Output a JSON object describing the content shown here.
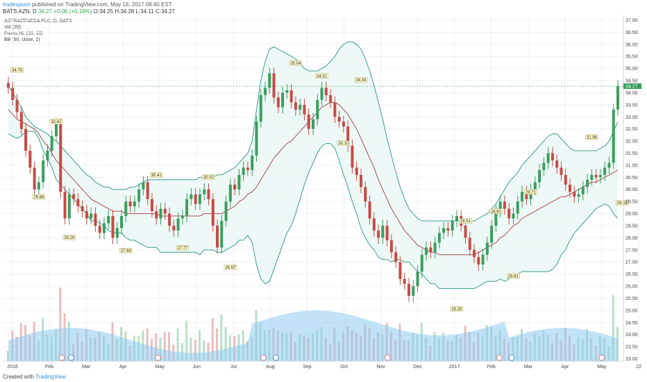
{
  "header": {
    "user": "tradespoon",
    "published": "published on TradingView.com, May 16, 2017 09:40 EST"
  },
  "ticker": {
    "symbol": "BATS:AZN, D",
    "last": "34.27",
    "change": "+0.06 (+0.18%)",
    "open": "O:34.25",
    "high": "H:34.28",
    "low": "L:34.11",
    "close": "C:34.27"
  },
  "legend": {
    "title": "ASTRAZENECA PLC, D, BATS",
    "vol": "Vol (20)",
    "pivots": "Pivots HL (10, 10)",
    "bb": "BB (50, close, 2)"
  },
  "footer": {
    "created": "Created with",
    "brand": "TradingView"
  },
  "colors": {
    "up": "#3a9e5e",
    "down": "#c94a44",
    "band": "#3c9b8e",
    "band_fill": "#e9f6f5",
    "basis": "#b04a4a",
    "volume_avg": "#8ecbf0",
    "price_label": "#3a9e5e"
  },
  "chart_data": {
    "type": "candlestick",
    "x_ticks": [
      "2016",
      "Feb",
      "Mar",
      "Apr",
      "May",
      "Jun",
      "Jul",
      "Aug",
      "Sep",
      "Oct",
      "Nov",
      "Dec",
      "2017",
      "Feb",
      "Mar",
      "Apr",
      "May",
      "22"
    ],
    "y_ticks": [
      "37.00",
      "36.50",
      "36.00",
      "35.50",
      "35.00",
      "34.50",
      "34.00",
      "33.50",
      "33.00",
      "32.50",
      "32.00",
      "31.50",
      "31.00",
      "30.50",
      "30.00",
      "29.50",
      "29.00",
      "28.50",
      "28.00",
      "27.50",
      "27.00",
      "26.50",
      "26.00",
      "25.50",
      "25.00",
      "24.50",
      "24.00",
      "23.50",
      "23.00"
    ],
    "ylim": [
      22.9,
      37.2
    ],
    "last_price_label": "34.27",
    "closes": [
      34.2,
      33.7,
      33.2,
      32.5,
      31.6,
      30.9,
      30.0,
      30.3,
      31.2,
      31.6,
      32.2,
      32.7,
      29.9,
      28.8,
      29.8,
      29.6,
      29.3,
      29.1,
      28.8,
      29.0,
      28.5,
      28.2,
      28.6,
      28.9,
      28.0,
      28.4,
      28.9,
      29.5,
      29.3,
      29.5,
      30.0,
      30.3,
      29.6,
      29.1,
      28.8,
      29.2,
      29.0,
      28.5,
      28.3,
      28.8,
      28.9,
      29.6,
      29.8,
      29.4,
      29.8,
      30.0,
      29.6,
      28.5,
      27.6,
      28.7,
      29.5,
      30.2,
      30.0,
      30.6,
      30.9,
      30.8,
      31.4,
      32.8,
      33.9,
      34.2,
      34.8,
      33.8,
      33.4,
      34.0,
      34.1,
      33.6,
      33.3,
      33.5,
      33.1,
      32.5,
      32.9,
      33.7,
      34.2,
      33.9,
      33.6,
      33.0,
      32.8,
      32.6,
      31.8,
      30.9,
      30.6,
      30.1,
      29.5,
      28.8,
      28.3,
      28.0,
      28.5,
      27.9,
      27.4,
      27.0,
      26.3,
      26.1,
      25.6,
      26.0,
      26.6,
      27.3,
      27.6,
      27.4,
      27.8,
      28.2,
      28.4,
      28.3,
      28.7,
      28.9,
      28.5,
      28.0,
      27.5,
      27.2,
      26.9,
      27.3,
      27.8,
      28.5,
      29.1,
      29.5,
      29.2,
      28.8,
      29.0,
      29.5,
      29.9,
      29.6,
      30.0,
      30.3,
      30.8,
      31.1,
      31.5,
      31.2,
      30.9,
      30.6,
      30.2,
      29.9,
      29.7,
      29.8,
      30.1,
      30.4,
      30.6,
      30.5,
      30.6,
      30.9,
      31.1,
      33.3,
      34.27
    ],
    "upper_band": [
      34.3,
      34.0,
      33.7,
      33.4,
      33.0,
      32.8,
      32.6,
      32.5,
      32.4,
      32.3,
      32.1,
      32.0,
      31.8,
      31.6,
      31.4,
      31.2,
      31.0,
      30.8,
      30.6,
      30.5,
      30.3,
      30.2,
      30.1,
      30.1,
      30.0,
      30.0,
      30.0,
      30.0,
      30.1,
      30.1,
      30.2,
      30.3,
      30.4,
      30.4,
      30.4,
      30.4,
      30.4,
      30.4,
      30.4,
      30.4,
      30.4,
      30.4,
      30.4,
      30.4,
      30.5,
      30.5,
      30.5,
      30.5,
      30.6,
      30.6,
      30.7,
      30.8,
      30.9,
      31.1,
      31.3,
      31.5,
      32.0,
      33.3,
      34.5,
      35.3,
      35.8,
      35.9,
      35.8,
      35.7,
      35.6,
      35.5,
      35.4,
      35.2,
      35.0,
      34.9,
      34.9,
      34.9,
      35.0,
      35.1,
      35.3,
      35.5,
      35.8,
      36.0,
      36.1,
      36.1,
      36.0,
      35.8,
      35.4,
      34.9,
      34.3,
      33.6,
      32.9,
      32.1,
      31.4,
      30.7,
      30.1,
      29.6,
      29.2,
      29.0,
      28.8,
      28.7,
      28.7,
      28.7,
      28.7,
      28.7,
      28.7,
      28.7,
      28.7,
      28.7,
      28.7,
      28.7,
      28.7,
      28.7,
      28.8,
      28.9,
      29.0,
      29.2,
      29.4,
      29.7,
      30.0,
      30.3,
      30.5,
      30.7,
      31.0,
      31.2,
      31.4,
      31.6,
      31.8,
      32.0,
      32.2,
      32.3,
      32.3,
      32.1,
      31.9,
      31.7,
      31.6,
      31.6,
      31.6,
      31.6,
      31.6,
      31.6,
      31.7,
      31.8,
      32.0,
      32.4,
      32.8
    ],
    "basis": [
      33.3,
      33.1,
      32.9,
      32.8,
      32.7,
      32.6,
      32.5,
      32.3,
      32.0,
      31.8,
      31.5,
      31.2,
      31.0,
      30.8,
      30.6,
      30.4,
      30.2,
      30.0,
      29.8,
      29.6,
      29.5,
      29.4,
      29.3,
      29.2,
      29.1,
      29.1,
      29.1,
      29.0,
      29.0,
      29.0,
      29.0,
      29.0,
      29.0,
      29.0,
      29.0,
      28.9,
      28.9,
      28.9,
      28.9,
      28.9,
      28.9,
      28.9,
      28.9,
      28.9,
      28.9,
      29.0,
      29.0,
      29.0,
      29.0,
      29.0,
      29.1,
      29.2,
      29.3,
      29.5,
      29.6,
      29.8,
      29.9,
      30.1,
      30.4,
      30.7,
      31.0,
      31.3,
      31.5,
      31.7,
      31.9,
      32.0,
      32.2,
      32.4,
      32.6,
      32.8,
      33.0,
      33.2,
      33.4,
      33.5,
      33.6,
      33.6,
      33.5,
      33.3,
      33.1,
      32.8,
      32.5,
      32.1,
      31.7,
      31.3,
      30.9,
      30.4,
      30.0,
      29.6,
      29.2,
      28.9,
      28.6,
      28.3,
      28.1,
      27.9,
      27.7,
      27.6,
      27.5,
      27.4,
      27.4,
      27.3,
      27.3,
      27.3,
      27.3,
      27.3,
      27.3,
      27.3,
      27.3,
      27.3,
      27.4,
      27.5,
      27.6,
      27.7,
      27.8,
      28.0,
      28.1,
      28.3,
      28.5,
      28.6,
      28.8,
      28.9,
      29.0,
      29.1,
      29.2,
      29.3,
      29.4,
      29.5,
      29.6,
      29.7,
      29.7,
      29.8,
      29.9,
      30.0,
      30.1,
      30.2,
      30.3,
      30.3,
      30.4,
      30.5,
      30.6,
      30.7,
      30.8
    ],
    "lower_band": [
      32.3,
      32.2,
      32.1,
      32.2,
      32.4,
      32.4,
      32.4,
      32.1,
      31.6,
      31.3,
      30.9,
      30.4,
      30.2,
      30.0,
      29.8,
      29.6,
      29.4,
      29.2,
      29.0,
      28.7,
      28.7,
      28.6,
      28.5,
      28.3,
      28.2,
      28.2,
      28.2,
      28.0,
      27.9,
      27.9,
      27.8,
      27.7,
      27.6,
      27.6,
      27.6,
      27.4,
      27.4,
      27.4,
      27.4,
      27.4,
      27.4,
      27.4,
      27.4,
      27.4,
      27.3,
      27.5,
      27.5,
      27.5,
      27.4,
      27.4,
      27.5,
      27.6,
      27.7,
      27.9,
      27.9,
      28.1,
      27.8,
      26.9,
      26.3,
      26.1,
      26.2,
      26.7,
      27.2,
      27.7,
      28.2,
      28.5,
      29.0,
      29.6,
      30.2,
      30.7,
      31.1,
      31.5,
      31.8,
      31.9,
      31.9,
      31.7,
      31.2,
      30.6,
      30.1,
      29.5,
      29.0,
      28.4,
      28.0,
      27.7,
      27.5,
      27.2,
      27.1,
      27.1,
      27.0,
      27.1,
      27.1,
      27.0,
      27.0,
      26.8,
      26.6,
      26.5,
      26.3,
      26.1,
      26.1,
      25.9,
      25.9,
      25.9,
      25.9,
      25.9,
      25.9,
      25.9,
      25.9,
      25.9,
      26.0,
      26.1,
      26.2,
      26.2,
      26.2,
      26.3,
      26.2,
      26.3,
      26.5,
      26.5,
      26.6,
      26.6,
      26.6,
      26.6,
      26.6,
      26.6,
      26.6,
      26.7,
      26.9,
      27.3,
      27.5,
      27.9,
      28.2,
      28.4,
      28.6,
      28.8,
      29.0,
      29.2,
      29.3,
      29.4,
      29.3,
      29.0,
      28.8
    ],
    "pivots": [
      {
        "label": "34.75",
        "index": 2,
        "type": "high"
      },
      {
        "label": "32.62",
        "index": 11,
        "type": "high"
      },
      {
        "label": "29.88",
        "index": 7,
        "type": "low"
      },
      {
        "label": "28.20",
        "index": 14,
        "type": "low"
      },
      {
        "label": "27.66",
        "index": 27,
        "type": "low"
      },
      {
        "label": "30.41",
        "index": 34,
        "type": "high"
      },
      {
        "label": "27.77",
        "index": 40,
        "type": "low"
      },
      {
        "label": "30.32",
        "index": 46,
        "type": "high"
      },
      {
        "label": "26.97",
        "index": 51,
        "type": "low"
      },
      {
        "label": "35.04",
        "index": 66,
        "type": "high"
      },
      {
        "label": "34.51",
        "index": 72,
        "type": "high"
      },
      {
        "label": "34.34",
        "index": 81,
        "type": "high"
      },
      {
        "label": "32.10",
        "index": 77,
        "type": "low"
      },
      {
        "label": "25.25",
        "index": 103,
        "type": "low"
      },
      {
        "label": "28.51",
        "index": 105,
        "type": "high"
      },
      {
        "label": "28.91",
        "index": 112,
        "type": "high"
      },
      {
        "label": "26.61",
        "index": 116,
        "type": "low"
      },
      {
        "label": "29.71",
        "index": 120,
        "type": "high"
      },
      {
        "label": "31.98",
        "index": 134,
        "type": "high"
      },
      {
        "label": "29.63",
        "index": 141,
        "type": "low"
      }
    ]
  }
}
